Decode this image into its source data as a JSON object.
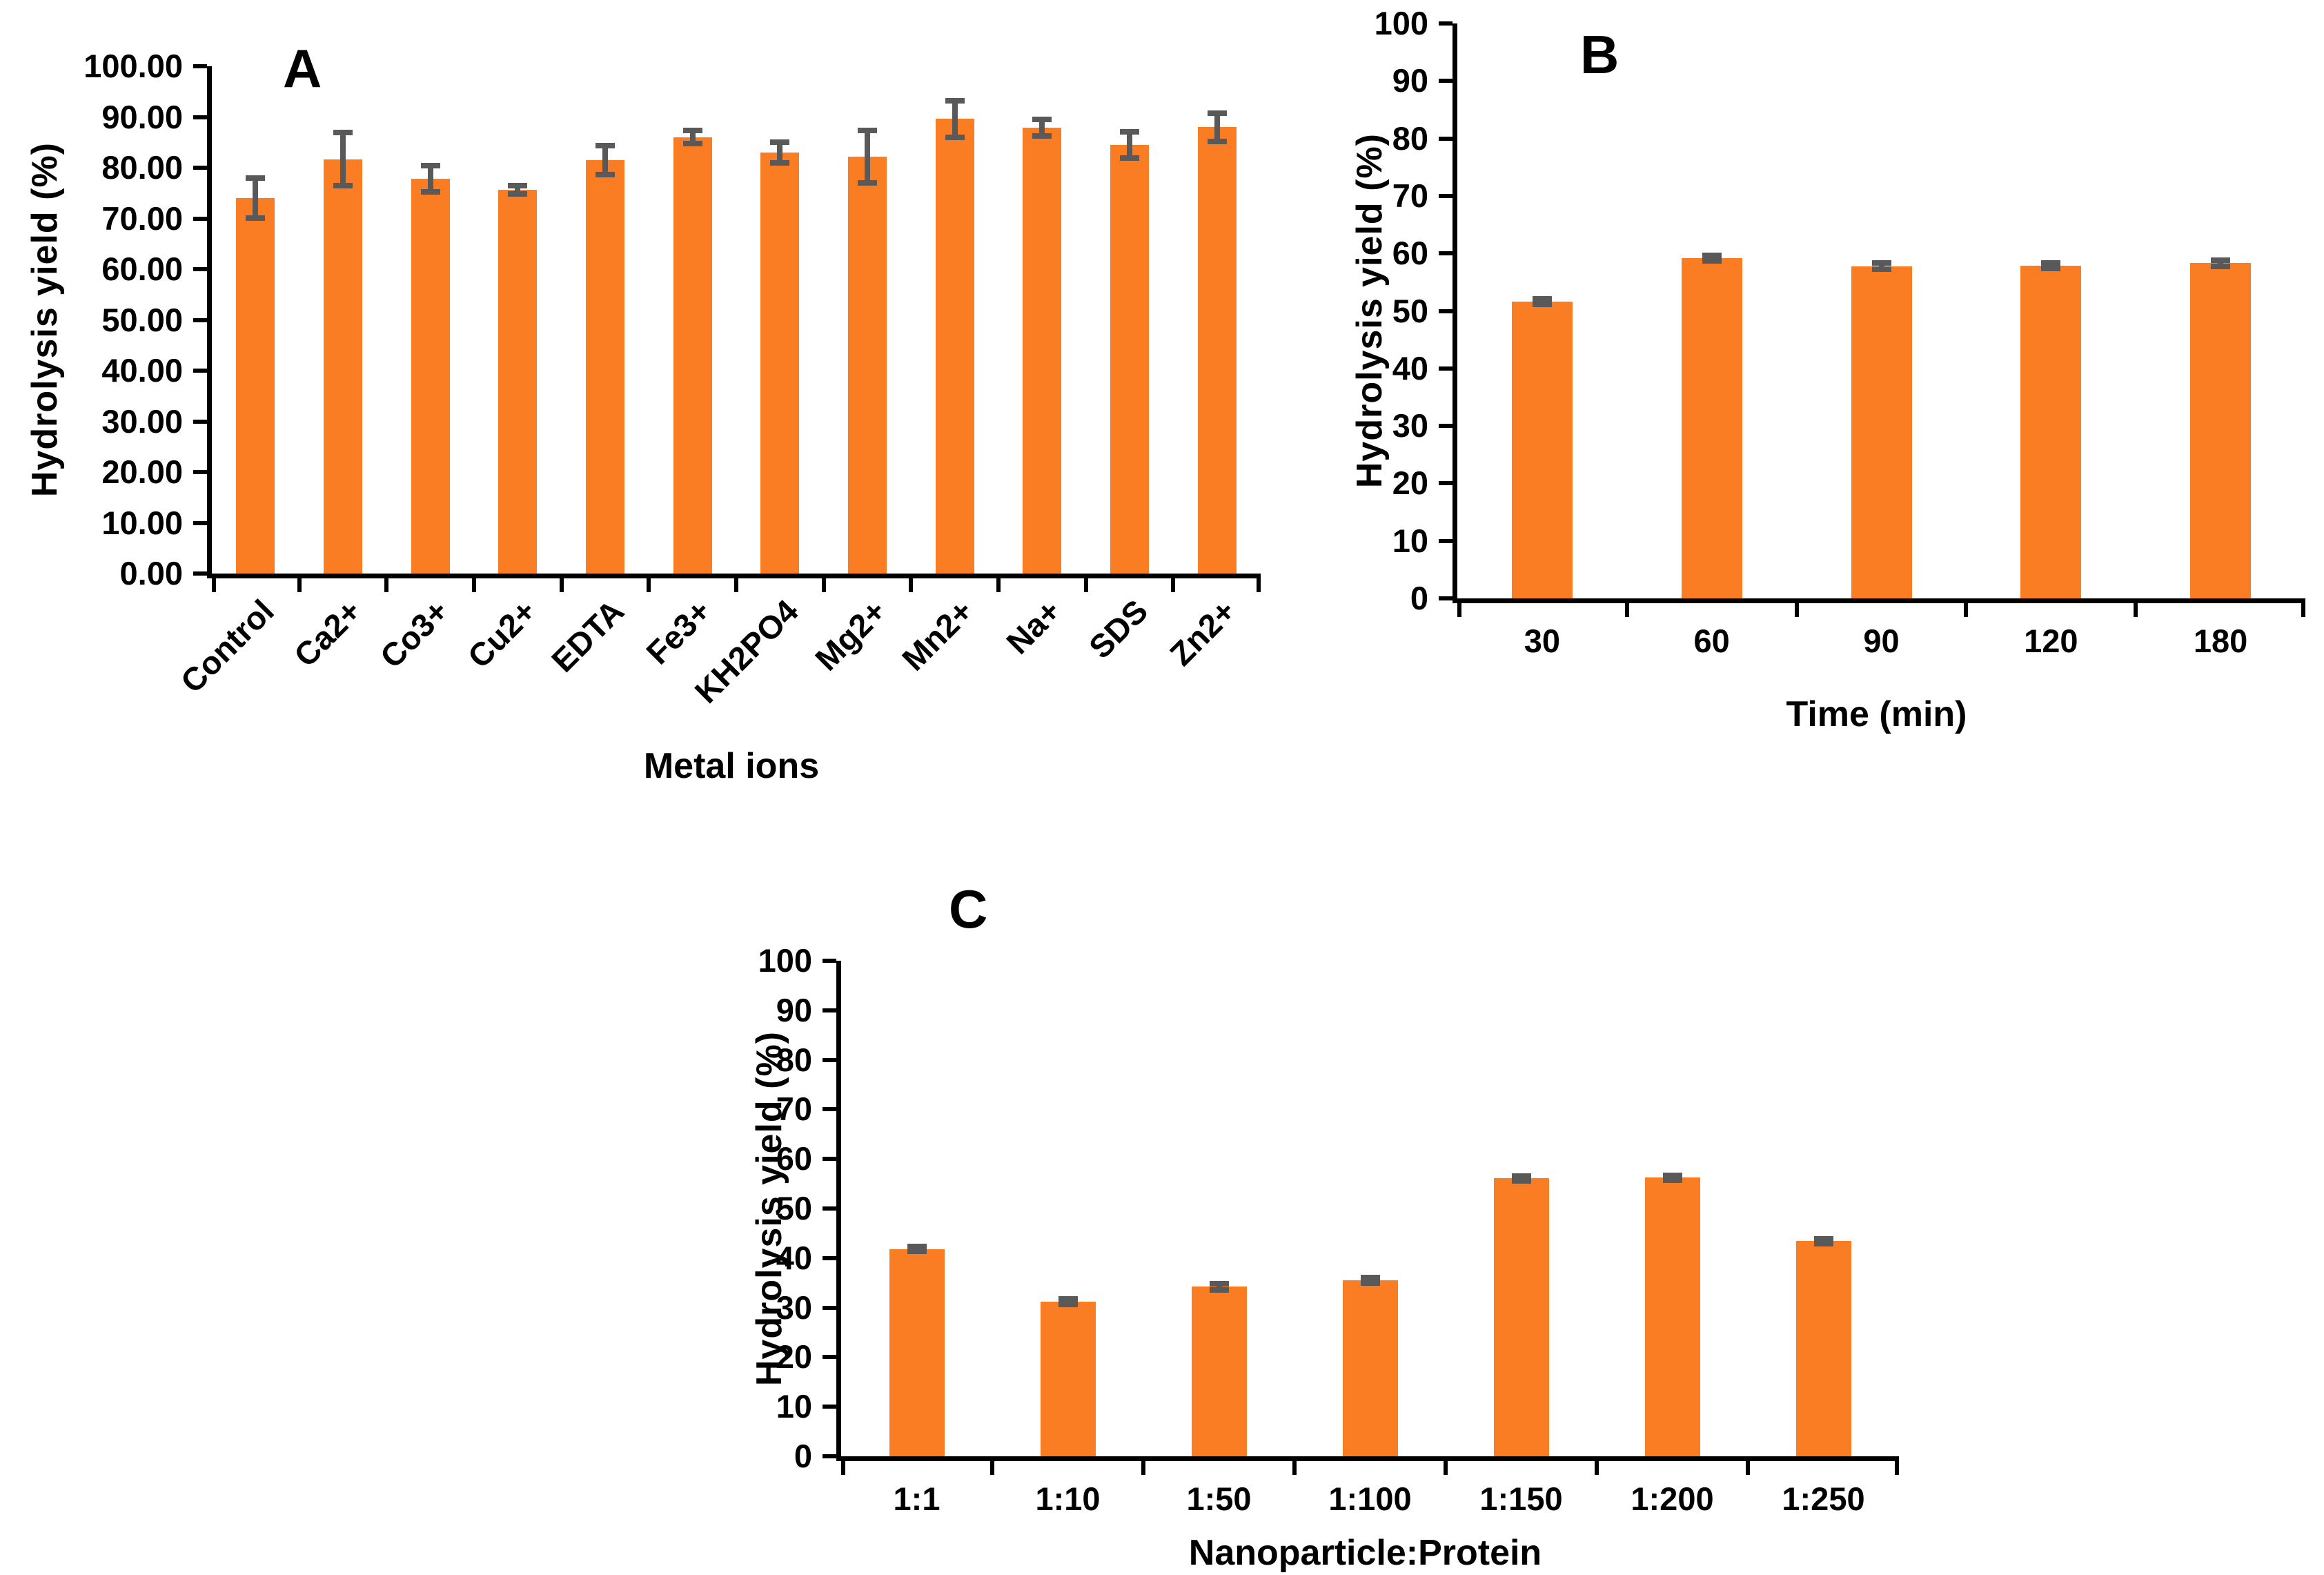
{
  "style": {
    "bar_color": "#FB7D23",
    "error_color": "#595959",
    "axis_color": "#000000",
    "background": "#FFFFFF"
  },
  "chart_data": [
    {
      "panel": "A",
      "type": "bar",
      "xlabel": "Metal ions",
      "ylabel": "Hydrolysis yield  (%)",
      "ylim": [
        0,
        100
      ],
      "ytick_step": 10,
      "ytick_decimals": 2,
      "grid": false,
      "legend": null,
      "rotated_labels": true,
      "categories": [
        "Control",
        "Ca2+",
        "Co3+",
        "Cu2+",
        "EDTA",
        "Fe3+",
        "KH2PO4",
        "Mg2+",
        "Mn2+",
        "Na+",
        "SDS",
        "Zn2+"
      ],
      "values": [
        74.0,
        81.7,
        77.8,
        75.6,
        81.5,
        86.0,
        83.0,
        82.2,
        89.6,
        87.9,
        84.5,
        88.0
      ],
      "errors": [
        3.9,
        5.2,
        2.6,
        0.8,
        2.8,
        1.3,
        2.0,
        5.2,
        3.6,
        1.6,
        2.6,
        2.8
      ]
    },
    {
      "panel": "B",
      "type": "bar",
      "xlabel": "Time (min)",
      "ylabel": "Hydrolysis yield  (%)",
      "ylim": [
        0,
        100
      ],
      "ytick_step": 10,
      "ytick_decimals": 0,
      "grid": false,
      "legend": null,
      "rotated_labels": false,
      "categories": [
        "30",
        "60",
        "90",
        "120",
        "180"
      ],
      "values": [
        51.6,
        59.2,
        57.8,
        57.9,
        58.3
      ],
      "errors": [
        0.5,
        0.5,
        0.5,
        0.5,
        0.5
      ]
    },
    {
      "panel": "C",
      "type": "bar",
      "xlabel": "Nanoparticle:Protein",
      "ylabel": "Hydrolysis yield  (%)",
      "ylim": [
        0,
        100
      ],
      "ytick_step": 10,
      "ytick_decimals": 0,
      "grid": false,
      "legend": null,
      "rotated_labels": false,
      "categories": [
        "1:1",
        "1:10",
        "1:50",
        "1:100",
        "1:150",
        "1:200",
        "1:250"
      ],
      "values": [
        41.8,
        31.2,
        34.2,
        35.5,
        56.1,
        56.2,
        43.4
      ],
      "errors": [
        0.5,
        0.5,
        0.6,
        0.6,
        0.5,
        0.5,
        0.5
      ]
    }
  ]
}
